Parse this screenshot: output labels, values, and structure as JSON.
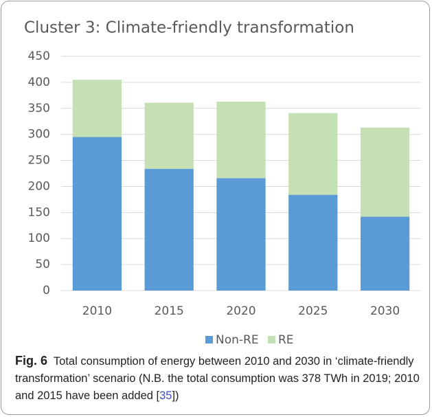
{
  "chart_data": {
    "type": "stacked_bar",
    "title": "Cluster 3: Climate-friendly transformation",
    "categories": [
      "2010",
      "2015",
      "2020",
      "2025",
      "2030"
    ],
    "series": [
      {
        "name": "Non-RE",
        "color": "#5b9bd5",
        "values": [
          295,
          234,
          216,
          184,
          142
        ]
      },
      {
        "name": "RE",
        "color": "#c5e0b4",
        "values": [
          110,
          127,
          147,
          157,
          171
        ]
      }
    ],
    "ylim": [
      0,
      450
    ],
    "yticks": [
      0,
      50,
      100,
      150,
      200,
      250,
      300,
      350,
      400,
      450
    ],
    "grid": true,
    "legend": "bottom"
  },
  "caption": {
    "label": "Fig. 6",
    "text": "Total consumption of energy between 2010 and 2030 in ‘climate-friendly transformation’ scenario (N.B. the total consumption was 378 TWh in 2019; 2010 and 2015 have been added [",
    "ref": "35",
    "tail": "])"
  }
}
